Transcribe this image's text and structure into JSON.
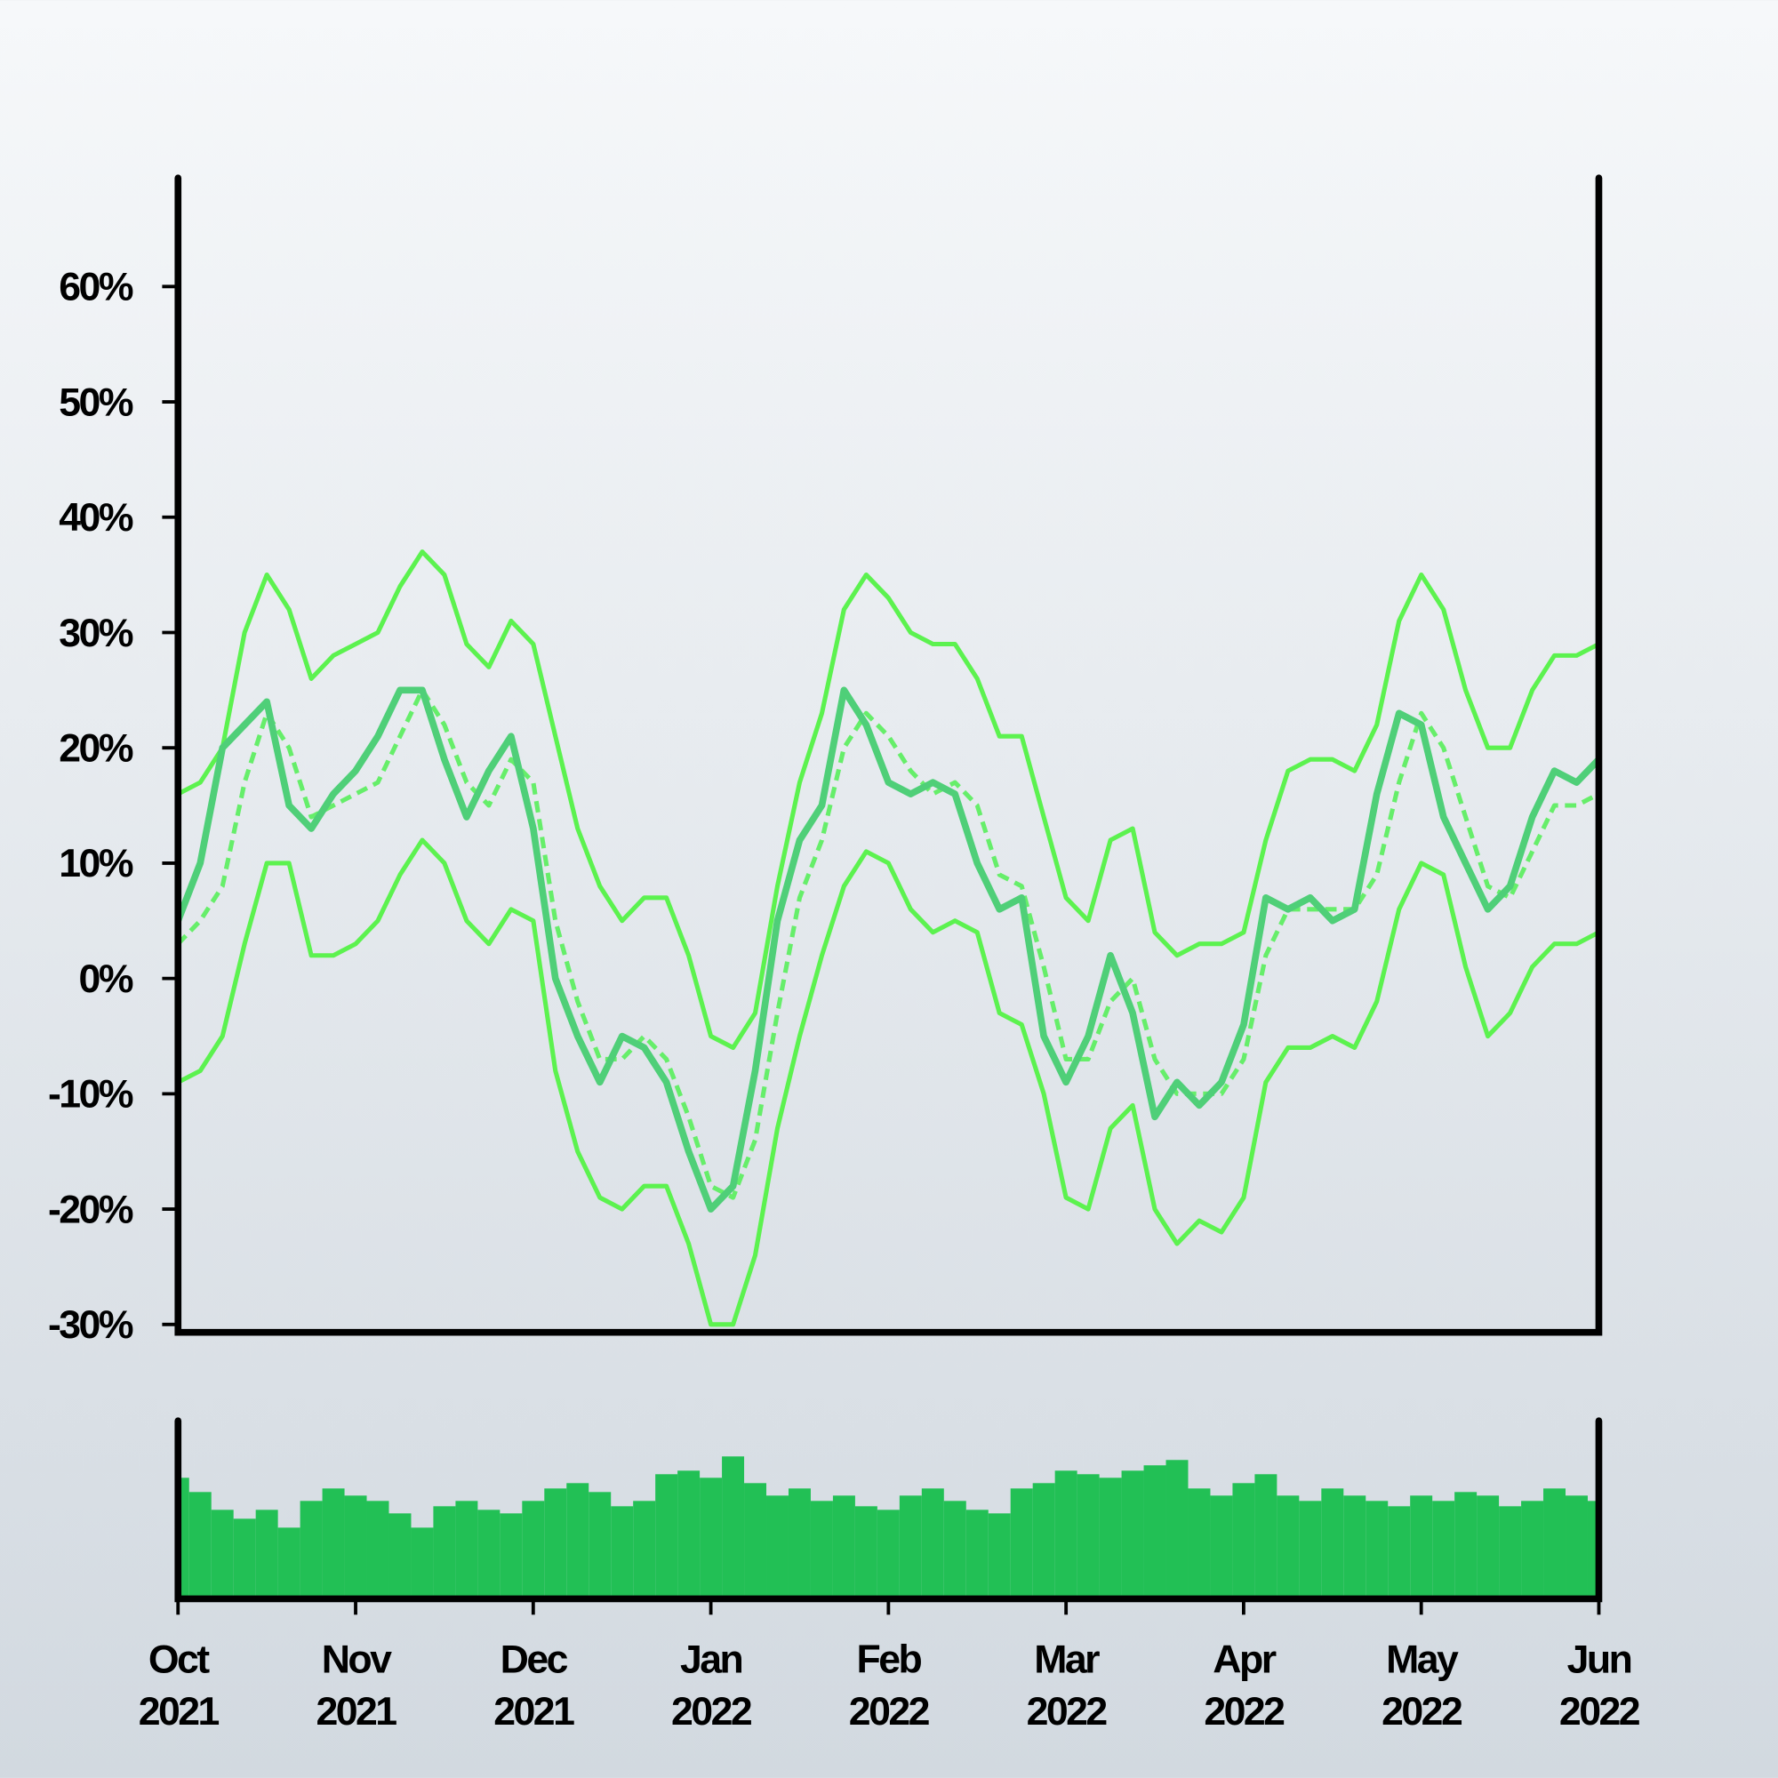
{
  "chart_data": [
    {
      "type": "line",
      "x": [
        0,
        0.125,
        0.25,
        0.375,
        0.5,
        0.625,
        0.75,
        0.875,
        1,
        1.125,
        1.25,
        1.375,
        1.5,
        1.625,
        1.75,
        1.875,
        2,
        2.125,
        2.25,
        2.375,
        2.5,
        2.625,
        2.75,
        2.875,
        3,
        3.125,
        3.25,
        3.375,
        3.5,
        3.625,
        3.75,
        3.875,
        4,
        4.125,
        4.25,
        4.375,
        4.5,
        4.625,
        4.75,
        4.875,
        5,
        5.125,
        5.25,
        5.375,
        5.5,
        5.625,
        5.75,
        5.875,
        6,
        6.125,
        6.25,
        6.375,
        6.5,
        6.625,
        6.75,
        6.875,
        7,
        7.125,
        7.25,
        7.375,
        7.5,
        7.625,
        7.75,
        7.875,
        8
      ],
      "series": [
        {
          "color": "#5cf24f",
          "style": "solid",
          "width": 4,
          "values": [
            16,
            17,
            20,
            30,
            35,
            32,
            26,
            28,
            29,
            30,
            34,
            37,
            35,
            29,
            27,
            31,
            29,
            21,
            13,
            8,
            5,
            7,
            7,
            2,
            -5,
            -6,
            -3,
            8,
            17,
            23,
            32,
            35,
            33,
            30,
            29,
            29,
            26,
            21,
            21,
            14,
            7,
            5,
            12,
            13,
            4,
            2,
            3,
            3,
            4,
            12,
            18,
            19,
            19,
            18,
            22,
            31,
            35,
            32,
            25,
            20,
            20,
            25,
            28,
            28,
            29
          ]
        },
        {
          "color": "#5cf24f",
          "style": "solid",
          "width": 4,
          "values": [
            -9,
            -8,
            -5,
            3,
            10,
            10,
            2,
            2,
            3,
            5,
            9,
            12,
            10,
            5,
            3,
            6,
            5,
            -8,
            -15,
            -19,
            -20,
            -18,
            -18,
            -23,
            -30,
            -30,
            -24,
            -13,
            -5,
            2,
            8,
            11,
            10,
            6,
            4,
            5,
            4,
            -3,
            -4,
            -10,
            -19,
            -20,
            -13,
            -11,
            -20,
            -23,
            -21,
            -22,
            -19,
            -9,
            -6,
            -6,
            -5,
            -6,
            -2,
            6,
            10,
            9,
            1,
            -5,
            -3,
            1,
            3,
            3,
            4
          ]
        },
        {
          "color": "#66ee6a",
          "style": "dashed",
          "width": 4,
          "values": [
            3,
            5,
            8,
            17,
            23,
            20,
            14,
            15,
            16,
            17,
            21,
            25,
            22,
            17,
            15,
            19,
            17,
            5,
            -2,
            -7,
            -7,
            -5,
            -7,
            -12,
            -18,
            -19,
            -14,
            -3,
            7,
            12,
            20,
            23,
            21,
            18,
            16,
            17,
            15,
            9,
            8,
            1,
            -7,
            -7,
            -2,
            0,
            -7,
            -10,
            -10,
            -10,
            -7,
            2,
            6,
            6,
            6,
            6,
            9,
            17,
            23,
            20,
            14,
            8,
            7,
            11,
            15,
            15,
            16
          ]
        },
        {
          "color": "#4fcf78",
          "style": "solid",
          "width": 6,
          "values": [
            5,
            10,
            20,
            22,
            24,
            15,
            13,
            16,
            18,
            21,
            25,
            25,
            19,
            14,
            18,
            21,
            13,
            0,
            -5,
            -9,
            -5,
            -6,
            -9,
            -15,
            -20,
            -18,
            -8,
            5,
            12,
            15,
            25,
            22,
            17,
            16,
            17,
            16,
            10,
            6,
            7,
            -5,
            -9,
            -5,
            2,
            -3,
            -12,
            -9,
            -11,
            -9,
            -4,
            7,
            6,
            7,
            5,
            6,
            16,
            23,
            22,
            14,
            10,
            6,
            8,
            14,
            18,
            17,
            19
          ]
        }
      ],
      "ylim": [
        -30,
        70
      ],
      "yticks": [
        {
          "value": -30,
          "label": "-30%"
        },
        {
          "value": -20,
          "label": "-20%"
        },
        {
          "value": -10,
          "label": "-10%"
        },
        {
          "value": 0,
          "label": "0%"
        },
        {
          "value": 10,
          "label": "10%"
        },
        {
          "value": 20,
          "label": "20%"
        },
        {
          "value": 30,
          "label": "30%"
        },
        {
          "value": 40,
          "label": "40%"
        },
        {
          "value": 50,
          "label": "50%"
        },
        {
          "value": 60,
          "label": "60%"
        }
      ],
      "xlim": [
        0,
        8
      ]
    },
    {
      "type": "bar",
      "color": "#22c055",
      "xlim": [
        0,
        8
      ],
      "ylim": [
        0,
        100
      ],
      "values": [
        68,
        60,
        50,
        45,
        50,
        40,
        55,
        62,
        58,
        55,
        48,
        40,
        52,
        55,
        50,
        48,
        55,
        62,
        65,
        60,
        52,
        55,
        70,
        72,
        68,
        80,
        65,
        58,
        62,
        55,
        58,
        52,
        50,
        58,
        62,
        55,
        50,
        48,
        62,
        65,
        72,
        70,
        68,
        72,
        75,
        78,
        62,
        58,
        65,
        70,
        58,
        55,
        62,
        58,
        55,
        52,
        58,
        55,
        60,
        58,
        52,
        55,
        62,
        58,
        55
      ],
      "xticks": [
        {
          "value": 0,
          "label": "Oct 2021"
        },
        {
          "value": 1,
          "label": "Nov 2021"
        },
        {
          "value": 2,
          "label": "Dec 2021"
        },
        {
          "value": 3,
          "label": "Jan 2022"
        },
        {
          "value": 4,
          "label": "Feb 2022"
        },
        {
          "value": 5,
          "label": "Mar 2022"
        },
        {
          "value": 6,
          "label": "Apr 2022"
        },
        {
          "value": 7,
          "label": "May 2022"
        },
        {
          "value": 8,
          "label": "Jun 2022"
        }
      ]
    }
  ]
}
